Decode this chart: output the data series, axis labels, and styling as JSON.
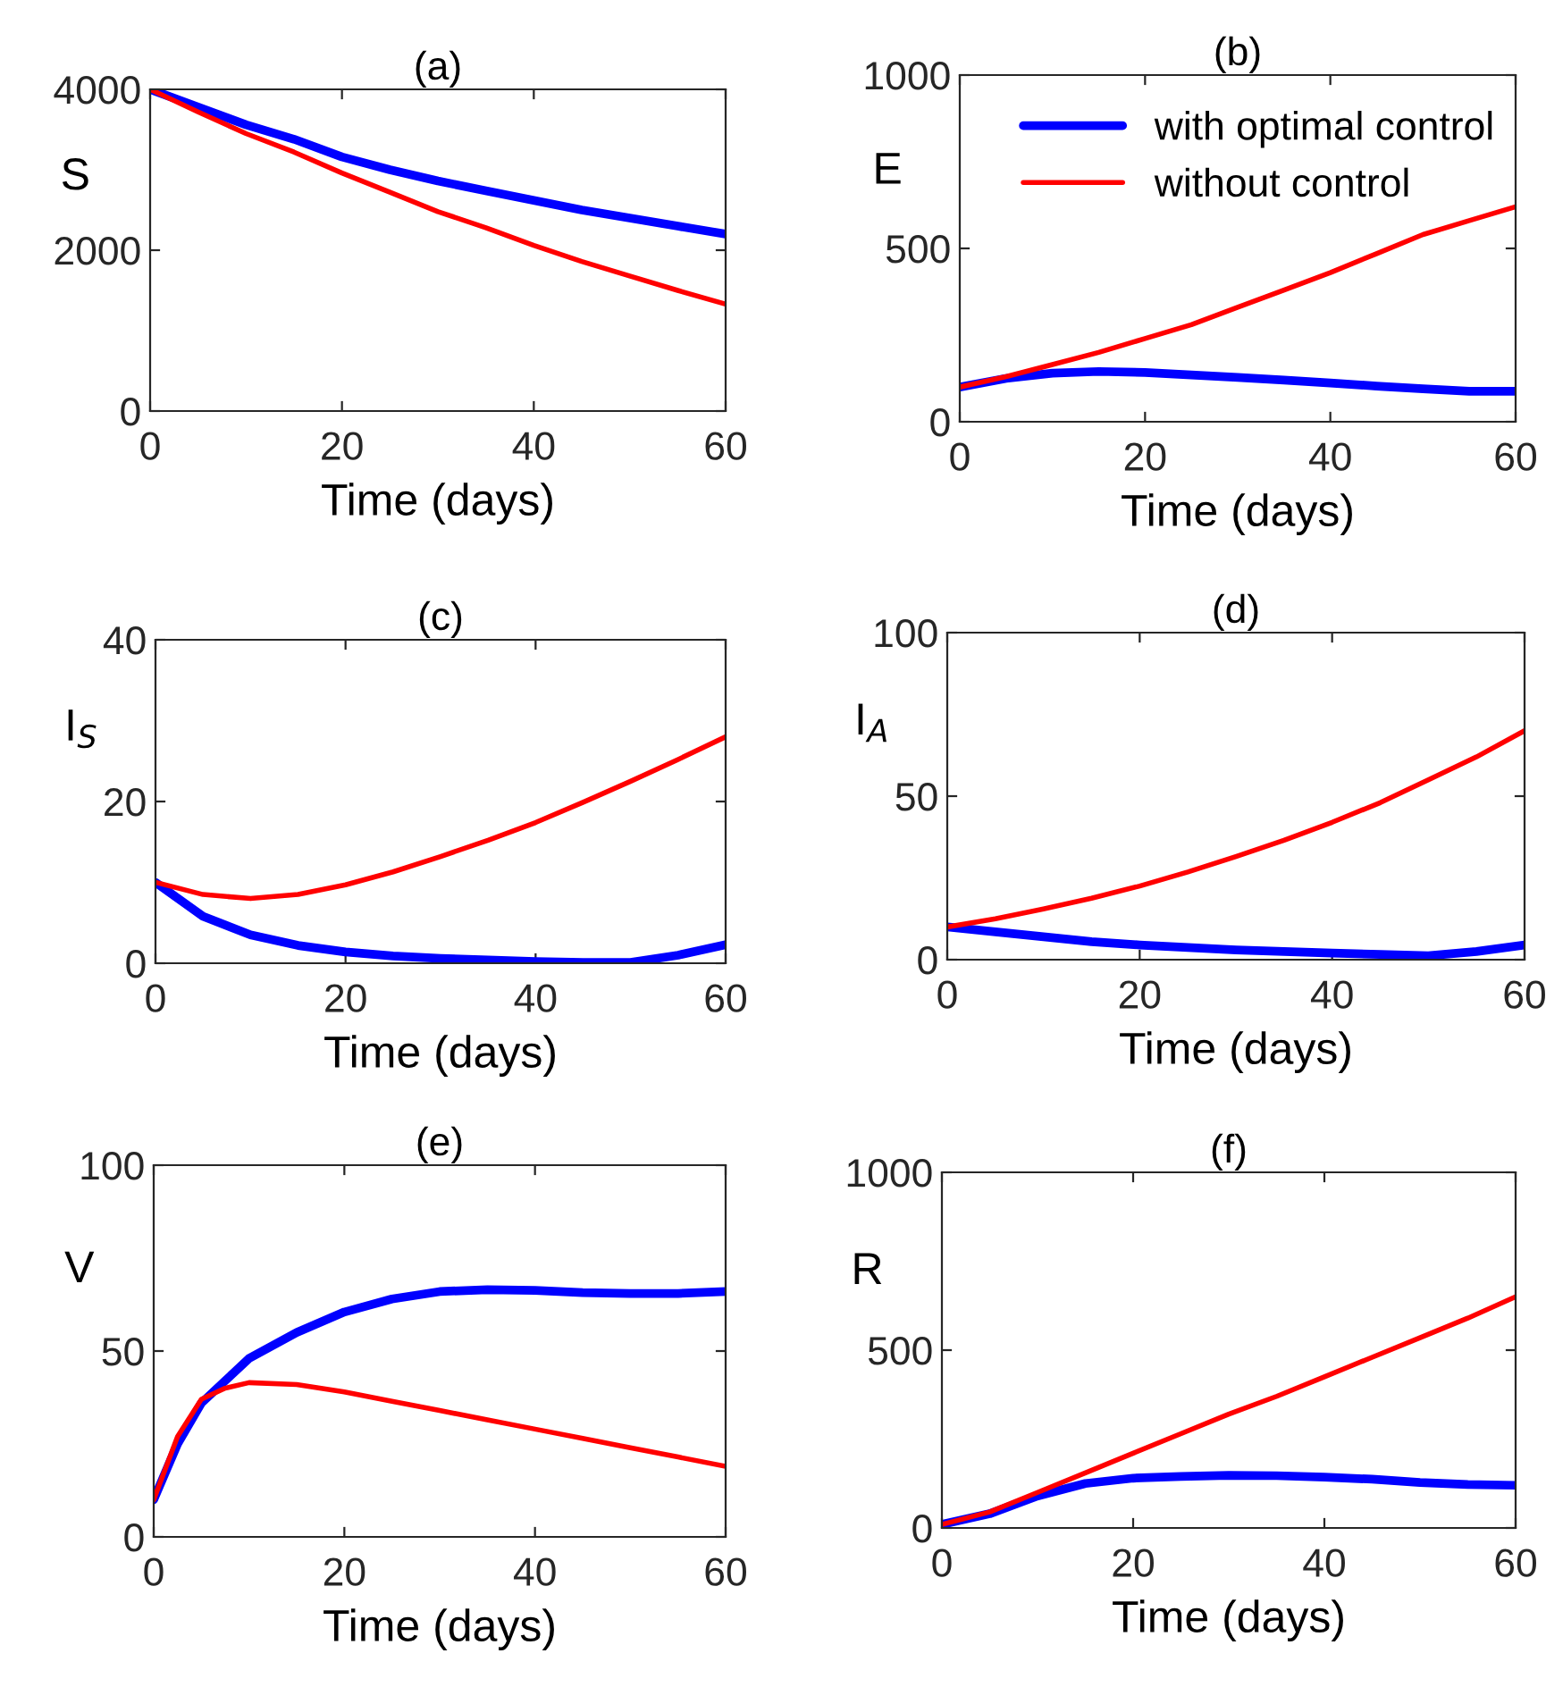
{
  "chart_data": [
    {
      "type": "line",
      "title": "(a)",
      "xlabel": "Time (days)",
      "ylabel": "S",
      "xlim": [
        0,
        60
      ],
      "xticks": [
        0,
        20,
        40,
        60
      ],
      "ylim": [
        0,
        4000
      ],
      "yticks": [
        0,
        2000,
        4000
      ],
      "grid": false,
      "legend": false,
      "x": [
        0,
        5,
        10,
        15,
        20,
        25,
        30,
        35,
        40,
        45,
        50,
        55,
        60
      ],
      "series": [
        {
          "color": "#0000ff",
          "values": [
            4000,
            3780,
            3560,
            3380,
            3160,
            3000,
            2860,
            2740,
            2620,
            2500,
            2400,
            2300,
            2200
          ]
        },
        {
          "color": "#ff0000",
          "values": [
            4000,
            3720,
            3450,
            3220,
            2960,
            2720,
            2480,
            2280,
            2060,
            1860,
            1680,
            1500,
            1330
          ]
        }
      ]
    },
    {
      "type": "line",
      "title": "(b)",
      "xlabel": "Time (days)",
      "ylabel": "E",
      "xlim": [
        0,
        60
      ],
      "xticks": [
        0,
        20,
        40,
        60
      ],
      "ylim": [
        0,
        1000
      ],
      "yticks": [
        0,
        500,
        1000
      ],
      "grid": false,
      "legend": "top left",
      "x": [
        0,
        5,
        10,
        15,
        20,
        25,
        30,
        35,
        40,
        45,
        50,
        55,
        60
      ],
      "series": [
        {
          "name": "with optimal control",
          "color": "#0000ff",
          "values": [
            100,
            125,
            140,
            145,
            142,
            135,
            128,
            120,
            112,
            103,
            95,
            88,
            88
          ]
        },
        {
          "name": "without control",
          "color": "#ff0000",
          "values": [
            100,
            130,
            165,
            200,
            240,
            280,
            330,
            380,
            430,
            485,
            540,
            580,
            620
          ]
        }
      ]
    },
    {
      "type": "line",
      "title": "(c)",
      "xlabel": "Time (days)",
      "ylabel": "I$_{S}$",
      "xlim": [
        0,
        60
      ],
      "xticks": [
        0,
        20,
        40,
        60
      ],
      "ylim": [
        0,
        40
      ],
      "yticks": [
        0,
        20,
        40
      ],
      "grid": false,
      "legend": false,
      "x": [
        0,
        5,
        10,
        15,
        20,
        25,
        30,
        35,
        40,
        45,
        50,
        55,
        60
      ],
      "series": [
        {
          "color": "#0000ff",
          "values": [
            10,
            5.8,
            3.5,
            2.2,
            1.4,
            0.9,
            0.6,
            0.4,
            0.2,
            0.1,
            0.1,
            1.0,
            2.3
          ]
        },
        {
          "color": "#ff0000",
          "values": [
            10,
            8.5,
            8.0,
            8.5,
            9.7,
            11.3,
            13.2,
            15.2,
            17.4,
            19.9,
            22.5,
            25.2,
            28
          ]
        }
      ]
    },
    {
      "type": "line",
      "title": "(d)",
      "xlabel": "Time (days)",
      "ylabel": "I$_{A}$",
      "xlim": [
        0,
        60
      ],
      "xticks": [
        0,
        20,
        40,
        60
      ],
      "ylim": [
        0,
        100
      ],
      "yticks": [
        0,
        50,
        100
      ],
      "grid": false,
      "legend": false,
      "x": [
        0,
        5,
        10,
        15,
        20,
        25,
        30,
        35,
        40,
        45,
        50,
        55,
        60
      ],
      "series": [
        {
          "color": "#0000ff",
          "values": [
            10,
            8.5,
            7,
            5.5,
            4.5,
            3.7,
            3,
            2.5,
            2,
            1.6,
            1.2,
            2.5,
            4.5
          ]
        },
        {
          "color": "#ff0000",
          "values": [
            10,
            12.5,
            15.5,
            18.8,
            22.5,
            26.8,
            31.5,
            36.5,
            42,
            48,
            55,
            62,
            70
          ]
        }
      ]
    },
    {
      "type": "line",
      "title": "(e)",
      "xlabel": "Time (days)",
      "ylabel": "V",
      "xlim": [
        0,
        60
      ],
      "xticks": [
        0,
        20,
        40,
        60
      ],
      "ylim": [
        0,
        100
      ],
      "yticks": [
        0,
        50,
        100
      ],
      "grid": false,
      "legend": false,
      "x": [
        0,
        2.5,
        5,
        7.5,
        10,
        15,
        20,
        25,
        30,
        35,
        40,
        45,
        50,
        55,
        60
      ],
      "series": [
        {
          "color": "#0000ff",
          "values": [
            10,
            25,
            36,
            42,
            48,
            55,
            60.5,
            64,
            66,
            66.5,
            66.3,
            65.7,
            65.5,
            65.5,
            66
          ]
        },
        {
          "color": "#ff0000",
          "values": [
            10,
            27,
            37,
            40,
            41.5,
            41,
            39,
            36.5,
            34,
            31.5,
            29,
            26.5,
            24,
            21.5,
            19
          ]
        }
      ]
    },
    {
      "type": "line",
      "title": "(f)",
      "xlabel": "Time (days)",
      "ylabel": "R",
      "xlim": [
        0,
        60
      ],
      "xticks": [
        0,
        20,
        40,
        60
      ],
      "ylim": [
        0,
        1000
      ],
      "yticks": [
        0,
        500,
        1000
      ],
      "grid": false,
      "legend": false,
      "x": [
        0,
        5,
        10,
        15,
        20,
        25,
        30,
        35,
        40,
        45,
        50,
        55,
        60
      ],
      "series": [
        {
          "color": "#0000ff",
          "values": [
            10,
            40,
            90,
            125,
            140,
            145,
            148,
            147,
            143,
            137,
            128,
            122,
            120
          ]
        },
        {
          "color": "#ff0000",
          "values": [
            10,
            45,
            100,
            155,
            210,
            265,
            320,
            370,
            425,
            480,
            535,
            590,
            650
          ]
        }
      ]
    }
  ]
}
